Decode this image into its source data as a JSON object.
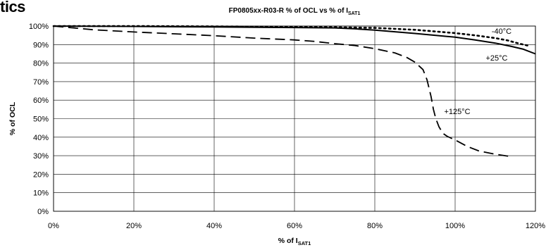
{
  "header_fragment": "tics",
  "chart_data": {
    "type": "line",
    "title": "FP0805xx-R03-R  % of OCL vs % of I",
    "title_subscript": "SAT1",
    "xlabel": "% of I",
    "xlabel_subscript": "SAT1",
    "ylabel": "% of OCL",
    "xlim": [
      0,
      120
    ],
    "ylim": [
      0,
      100
    ],
    "x_ticks": [
      "0%",
      "20%",
      "40%",
      "60%",
      "80%",
      "100%",
      "120%"
    ],
    "y_ticks": [
      "0%",
      "10%",
      "20%",
      "30%",
      "40%",
      "50%",
      "60%",
      "70%",
      "80%",
      "90%",
      "100%"
    ],
    "grid": true,
    "series": [
      {
        "name": "-40°C",
        "line_style": "dotted",
        "x": [
          0,
          20,
          40,
          60,
          70,
          80,
          90,
          100,
          105,
          110,
          113,
          116,
          118
        ],
        "y": [
          100,
          100,
          99.8,
          99.5,
          99.3,
          99.0,
          98.0,
          96.2,
          95.0,
          93.5,
          92.3,
          90.5,
          89.5
        ]
      },
      {
        "name": "+25°C",
        "line_style": "solid",
        "x": [
          0,
          20,
          40,
          60,
          70,
          75,
          80,
          90,
          100,
          105,
          110,
          114,
          117,
          120
        ],
        "y": [
          100,
          99.8,
          99.5,
          99.2,
          99.0,
          98.5,
          97.8,
          96.0,
          94.0,
          92.5,
          90.8,
          89.0,
          87.5,
          85.0
        ]
      },
      {
        "name": "+125°C",
        "line_style": "dashed",
        "x": [
          0,
          10,
          20,
          30,
          40,
          50,
          60,
          65,
          70,
          75,
          80,
          85,
          88,
          90,
          92,
          93,
          94,
          94.6,
          95.2,
          96,
          97,
          98,
          100,
          103,
          106,
          110,
          114
        ],
        "y": [
          100,
          98,
          96.8,
          95.8,
          94.8,
          93.5,
          92.5,
          91.7,
          90.5,
          89.5,
          87.8,
          85.5,
          83.0,
          80.5,
          76.5,
          71.0,
          62.0,
          55.0,
          50.0,
          45.5,
          42.0,
          40.5,
          38.5,
          35.0,
          32.5,
          30.8,
          29.5
        ]
      }
    ],
    "annotations": [
      "-40°C",
      "+25°C",
      "+125°C"
    ]
  }
}
